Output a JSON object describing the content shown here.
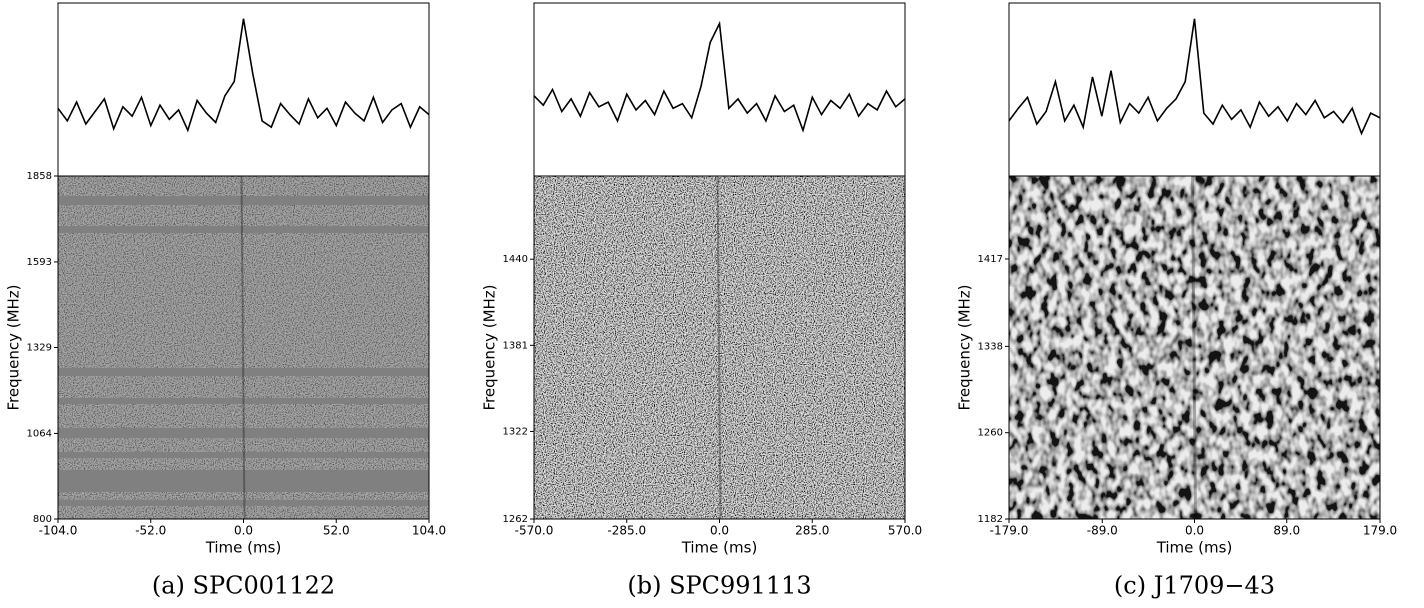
{
  "chart_data": [
    {
      "type": "waterfall",
      "caption": "(a) SPC001122",
      "xlabel": "Time (ms)",
      "ylabel": "Frequency (MHz)",
      "xlim": [
        -104,
        104
      ],
      "xticks": [
        {
          "value": -104,
          "label": "-104.0"
        },
        {
          "value": -52,
          "label": "-52.0"
        },
        {
          "value": 0,
          "label": "0.0"
        },
        {
          "value": 52,
          "label": "52.0"
        },
        {
          "value": 104,
          "label": "104.0"
        }
      ],
      "ylim": [
        800,
        1858
      ],
      "yticks": [
        800,
        1064,
        1329,
        1593,
        1858
      ],
      "profile": {
        "color": "#000000",
        "ylim": [
          0,
          1
        ],
        "x": [
          -104,
          -98.8,
          -93.6,
          -88.4,
          -83.2,
          -78,
          -72.8,
          -67.6,
          -62.4,
          -57.2,
          -52,
          -46.8,
          -41.6,
          -36.4,
          -31.2,
          -26,
          -20.8,
          -15.6,
          -10.4,
          -5.2,
          0,
          5.2,
          10.4,
          15.6,
          20.8,
          26,
          31.2,
          36.4,
          41.6,
          46.8,
          52,
          57.2,
          62.4,
          67.6,
          72.8,
          78,
          83.2,
          88.4,
          93.6,
          98.8,
          104
        ],
        "values": [
          0.38,
          0.3,
          0.42,
          0.28,
          0.36,
          0.44,
          0.25,
          0.39,
          0.33,
          0.45,
          0.27,
          0.4,
          0.31,
          0.37,
          0.24,
          0.43,
          0.35,
          0.29,
          0.46,
          0.55,
          0.95,
          0.6,
          0.3,
          0.26,
          0.41,
          0.34,
          0.28,
          0.44,
          0.32,
          0.38,
          0.27,
          0.42,
          0.35,
          0.3,
          0.45,
          0.29,
          0.37,
          0.41,
          0.26,
          0.39,
          0.34
        ]
      }
    },
    {
      "type": "waterfall",
      "caption": "(b) SPC991113",
      "xlabel": "Time (ms)",
      "ylabel": "Frequency (MHz)",
      "xlim": [
        -570,
        570
      ],
      "xticks": [
        {
          "value": -570,
          "label": "-570.0"
        },
        {
          "value": -285,
          "label": "-285.0"
        },
        {
          "value": 0,
          "label": "0.0"
        },
        {
          "value": 285,
          "label": "285.0"
        },
        {
          "value": 570,
          "label": "570.0"
        }
      ],
      "ylim": [
        1262,
        1497
      ],
      "yticks": [
        1262,
        1322,
        1381,
        1440
      ],
      "profile": {
        "color": "#000000",
        "ylim": [
          0,
          1
        ],
        "x": [
          -570,
          -541.5,
          -513,
          -484.5,
          -456,
          -427.5,
          -399,
          -370.5,
          -342,
          -313.5,
          -285,
          -256.5,
          -228,
          -199.5,
          -171,
          -142.5,
          -114,
          -85.5,
          -57,
          -28.5,
          0,
          28.5,
          57,
          85.5,
          114,
          142.5,
          171,
          199.5,
          228,
          256.5,
          285,
          313.5,
          342,
          370.5,
          399,
          427.5,
          456,
          484.5,
          513,
          541.5,
          570
        ],
        "values": [
          0.46,
          0.4,
          0.5,
          0.36,
          0.44,
          0.33,
          0.48,
          0.39,
          0.42,
          0.3,
          0.47,
          0.37,
          0.43,
          0.34,
          0.49,
          0.38,
          0.41,
          0.32,
          0.52,
          0.8,
          0.92,
          0.38,
          0.44,
          0.35,
          0.41,
          0.3,
          0.46,
          0.36,
          0.4,
          0.24,
          0.45,
          0.34,
          0.43,
          0.38,
          0.47,
          0.33,
          0.41,
          0.37,
          0.49,
          0.39,
          0.44
        ]
      }
    },
    {
      "type": "waterfall",
      "caption": "(c) J1709−43",
      "xlabel": "Time (ms)",
      "ylabel": "Frequency (MHz)",
      "xlim": [
        -179,
        179
      ],
      "xticks": [
        {
          "value": -179,
          "label": "-179.0"
        },
        {
          "value": -89,
          "label": "-89.0"
        },
        {
          "value": 0,
          "label": "0.0"
        },
        {
          "value": 89,
          "label": "89.0"
        },
        {
          "value": 179,
          "label": "179.0"
        }
      ],
      "ylim": [
        1182,
        1492
      ],
      "yticks": [
        1182,
        1260,
        1338,
        1417
      ],
      "profile": {
        "color": "#000000",
        "ylim": [
          0,
          1
        ],
        "x": [
          -179,
          -170.05,
          -161.1,
          -152.15,
          -143.2,
          -134.25,
          -125.3,
          -116.35,
          -107.4,
          -98.45,
          -89.5,
          -80.55,
          -71.6,
          -62.65,
          -53.7,
          -44.75,
          -35.8,
          -26.85,
          -17.9,
          -8.95,
          0,
          8.95,
          17.9,
          26.85,
          35.8,
          44.75,
          53.7,
          62.65,
          71.6,
          80.55,
          89.5,
          98.45,
          107.4,
          116.35,
          125.3,
          134.25,
          143.2,
          152.15,
          161.1,
          170.05,
          179
        ],
        "values": [
          0.3,
          0.38,
          0.45,
          0.28,
          0.36,
          0.55,
          0.3,
          0.4,
          0.26,
          0.58,
          0.33,
          0.62,
          0.29,
          0.41,
          0.35,
          0.45,
          0.3,
          0.38,
          0.44,
          0.55,
          0.95,
          0.35,
          0.28,
          0.4,
          0.31,
          0.37,
          0.26,
          0.42,
          0.33,
          0.39,
          0.3,
          0.41,
          0.34,
          0.43,
          0.32,
          0.36,
          0.29,
          0.38,
          0.22,
          0.35,
          0.32
        ]
      }
    }
  ]
}
